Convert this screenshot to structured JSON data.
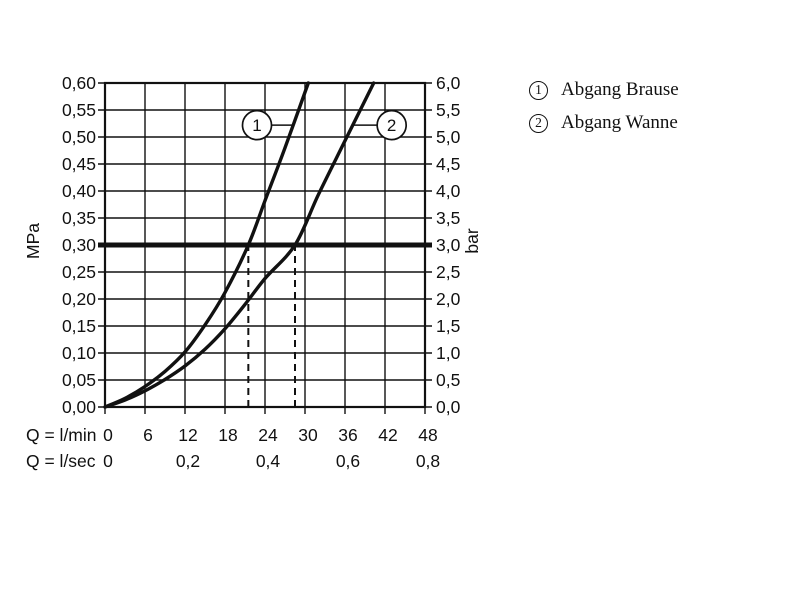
{
  "page": {
    "background": "#ffffff",
    "ink_color": "#111111"
  },
  "legend": {
    "items": [
      {
        "symbol": "1",
        "label": "Abgang Brause"
      },
      {
        "symbol": "2",
        "label": "Abgang Wanne"
      }
    ]
  },
  "chart_data": {
    "type": "line",
    "title": "",
    "grid": true,
    "x_axis": {
      "primary_label": "Q = l/min",
      "secondary_label": "Q = l/sec",
      "min": 0,
      "max": 48,
      "primary_ticks": [
        {
          "value": 0,
          "label": "0"
        },
        {
          "value": 6,
          "label": "6"
        },
        {
          "value": 12,
          "label": "12"
        },
        {
          "value": 18,
          "label": "18"
        },
        {
          "value": 24,
          "label": "24"
        },
        {
          "value": 30,
          "label": "30"
        },
        {
          "value": 36,
          "label": "36"
        },
        {
          "value": 42,
          "label": "42"
        },
        {
          "value": 48,
          "label": "48"
        }
      ],
      "secondary_ticks": [
        {
          "value": 0,
          "label": "0"
        },
        {
          "value": 12,
          "label": "0,2"
        },
        {
          "value": 24,
          "label": "0,4"
        },
        {
          "value": 36,
          "label": "0,6"
        },
        {
          "value": 48,
          "label": "0,8"
        }
      ]
    },
    "y_axis_left": {
      "unit": "MPa",
      "min": 0,
      "max": 0.6,
      "tick_step": 0.05,
      "tick_labels": [
        "0,00",
        "0,05",
        "0,10",
        "0,15",
        "0,20",
        "0,25",
        "0,30",
        "0,35",
        "0,40",
        "0,45",
        "0,50",
        "0,55",
        "0,60"
      ]
    },
    "y_axis_right": {
      "unit": "bar",
      "min": 0,
      "max": 6,
      "tick_step": 0.5,
      "tick_labels": [
        "0,0",
        "0,5",
        "1,0",
        "1,5",
        "2,0",
        "2,5",
        "3,0",
        "3,5",
        "4,0",
        "4,5",
        "5,0",
        "5,5",
        "6,0"
      ]
    },
    "reference_line_mpa": 0.3,
    "guide_lines_lmin": [
      21.5,
      28.5
    ],
    "series": [
      {
        "id": "1",
        "name": "Abgang Brause",
        "points": [
          [
            0,
            0
          ],
          [
            3,
            0.016
          ],
          [
            6,
            0.038
          ],
          [
            9,
            0.066
          ],
          [
            12,
            0.102
          ],
          [
            15,
            0.152
          ],
          [
            18,
            0.212
          ],
          [
            21.5,
            0.3
          ],
          [
            24,
            0.382
          ],
          [
            27,
            0.48
          ],
          [
            30.5,
            0.6
          ]
        ],
        "marker": {
          "q": 22.8,
          "mpa": 0.522,
          "side": "left"
        }
      },
      {
        "id": "2",
        "name": "Abgang Wanne",
        "points": [
          [
            0,
            0
          ],
          [
            3,
            0.013
          ],
          [
            6,
            0.03
          ],
          [
            9,
            0.051
          ],
          [
            12,
            0.076
          ],
          [
            15,
            0.107
          ],
          [
            18,
            0.145
          ],
          [
            21,
            0.19
          ],
          [
            24,
            0.238
          ],
          [
            28.5,
            0.3
          ],
          [
            32,
            0.393
          ],
          [
            36,
            0.493
          ],
          [
            40.3,
            0.6
          ]
        ],
        "marker": {
          "q": 43.0,
          "mpa": 0.522,
          "side": "right"
        }
      }
    ]
  }
}
